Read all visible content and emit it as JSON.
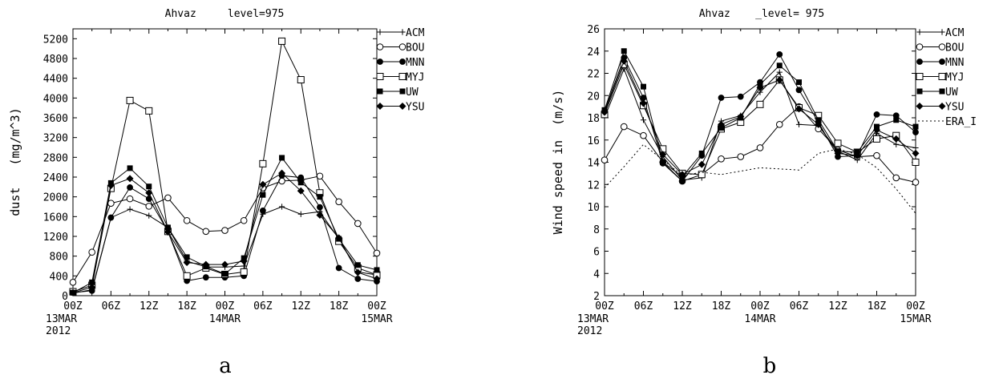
{
  "panels": [
    {
      "label": "a",
      "title": "Ahvaz     level=975"
    },
    {
      "label": "b",
      "title": "Ahvaz    _level= 975"
    }
  ],
  "chart_data": [
    {
      "type": "line",
      "title": "Ahvaz     level=975",
      "xlabel": "",
      "ylabel": "dust   (mg/m^3)",
      "ylim": [
        0,
        5400
      ],
      "yticks": [
        0,
        400,
        800,
        1200,
        1600,
        2000,
        2400,
        2800,
        3200,
        3600,
        4000,
        4400,
        4800,
        5200
      ],
      "x_hours": [
        0,
        3,
        6,
        9,
        12,
        15,
        18,
        21,
        24,
        27,
        30,
        33,
        36,
        39,
        42,
        45,
        48
      ],
      "x_tick_hours": [
        0,
        6,
        12,
        18,
        24,
        30,
        36,
        42,
        48
      ],
      "x_tick_labels": [
        "00Z",
        "06Z",
        "12Z",
        "18Z",
        "00Z",
        "06Z",
        "12Z",
        "18Z",
        "00Z"
      ],
      "x_date_labels": [
        {
          "hour": 0,
          "lines": [
            "13MAR",
            "2012"
          ]
        },
        {
          "hour": 24,
          "lines": [
            "14MAR"
          ]
        },
        {
          "hour": 48,
          "lines": [
            "15MAR"
          ]
        }
      ],
      "legend_position": "right",
      "series": [
        {
          "name": "ACM",
          "marker": "plus",
          "values": [
            50,
            120,
            1580,
            1750,
            1620,
            1380,
            700,
            580,
            580,
            600,
            1650,
            1800,
            1650,
            1700,
            1150,
            480,
            420
          ]
        },
        {
          "name": "BOU",
          "marker": "open-circle",
          "values": [
            270,
            880,
            1870,
            1960,
            1810,
            1980,
            1520,
            1300,
            1320,
            1520,
            2180,
            2320,
            2340,
            2420,
            1900,
            1460,
            860
          ]
        },
        {
          "name": "MNN",
          "marker": "filled-circle",
          "values": [
            60,
            100,
            1580,
            2190,
            1960,
            1300,
            300,
            370,
            370,
            400,
            1720,
            2430,
            2390,
            1790,
            560,
            340,
            290
          ]
        },
        {
          "name": "MYJ",
          "marker": "open-square",
          "values": [
            80,
            210,
            2170,
            3950,
            3740,
            1300,
            400,
            560,
            430,
            480,
            2670,
            5150,
            4370,
            2080,
            1100,
            560,
            420
          ]
        },
        {
          "name": "UW",
          "marker": "filled-square",
          "values": [
            60,
            270,
            2280,
            2580,
            2210,
            1380,
            780,
            590,
            440,
            760,
            2040,
            2790,
            2290,
            2000,
            1150,
            620,
            520
          ]
        },
        {
          "name": "YSU",
          "marker": "filled-diamond",
          "values": [
            60,
            170,
            2230,
            2370,
            2080,
            1290,
            670,
            630,
            630,
            700,
            2250,
            2480,
            2120,
            1630,
            1170,
            470,
            340
          ]
        }
      ]
    },
    {
      "type": "line",
      "title": "Ahvaz    _level= 975",
      "xlabel": "",
      "ylabel": "Wind speed in  (m/s)",
      "ylim": [
        2,
        26
      ],
      "yticks": [
        2,
        4,
        6,
        8,
        10,
        12,
        14,
        16,
        18,
        20,
        22,
        24,
        26
      ],
      "x_hours": [
        0,
        3,
        6,
        9,
        12,
        15,
        18,
        21,
        24,
        27,
        30,
        33,
        36,
        39,
        42,
        45,
        48
      ],
      "x_tick_hours": [
        0,
        6,
        12,
        18,
        24,
        30,
        36,
        42,
        48
      ],
      "x_tick_labels": [
        "00Z",
        "06Z",
        "12Z",
        "18Z",
        "00Z",
        "06Z",
        "12Z",
        "18Z",
        "00Z"
      ],
      "x_date_labels": [
        {
          "hour": 0,
          "lines": [
            "13MAR",
            "2012"
          ]
        },
        {
          "hour": 24,
          "lines": [
            "14MAR"
          ]
        },
        {
          "hour": 48,
          "lines": [
            "15MAR"
          ]
        }
      ],
      "legend_position": "right",
      "series": [
        {
          "name": "ACM",
          "marker": "plus",
          "values": [
            18.0,
            22.4,
            17.8,
            14.5,
            12.4,
            12.6,
            17.7,
            18.2,
            20.3,
            22.1,
            17.4,
            17.3,
            15.0,
            14.2,
            16.6,
            15.6,
            15.3
          ]
        },
        {
          "name": "BOU",
          "marker": "open-circle",
          "values": [
            14.2,
            17.2,
            16.4,
            14.0,
            12.3,
            12.9,
            14.3,
            14.5,
            15.3,
            17.4,
            19.0,
            17.0,
            15.1,
            14.5,
            14.6,
            12.6,
            12.2
          ]
        },
        {
          "name": "MNN",
          "marker": "filled-circle",
          "values": [
            18.6,
            23.4,
            19.8,
            13.9,
            12.3,
            14.6,
            19.8,
            19.9,
            21.2,
            23.7,
            20.5,
            17.6,
            14.5,
            14.6,
            18.3,
            18.2,
            16.7
          ]
        },
        {
          "name": "MYJ",
          "marker": "open-square",
          "values": [
            18.3,
            22.8,
            19.1,
            15.2,
            13.0,
            12.9,
            17.0,
            17.6,
            19.2,
            21.4,
            18.9,
            18.2,
            15.7,
            14.9,
            16.1,
            16.4,
            14.0
          ]
        },
        {
          "name": "UW",
          "marker": "filled-square",
          "values": [
            18.7,
            24.0,
            20.8,
            14.0,
            12.7,
            14.8,
            17.1,
            18.0,
            21.0,
            22.7,
            21.2,
            17.8,
            15.0,
            14.9,
            17.2,
            17.8,
            17.2
          ]
        },
        {
          "name": "YSU",
          "marker": "filled-diamond",
          "values": [
            18.5,
            23.1,
            19.3,
            14.7,
            12.9,
            13.8,
            17.4,
            18.1,
            20.7,
            21.4,
            18.8,
            17.4,
            14.8,
            14.6,
            16.9,
            16.1,
            14.8
          ]
        },
        {
          "name": "ERA_I",
          "marker": "none",
          "dashed": true,
          "values": [
            11.7,
            13.6,
            15.6,
            14.2,
            12.8,
            13.1,
            12.9,
            13.2,
            13.5,
            13.4,
            13.3,
            14.8,
            15.2,
            14.7,
            13.5,
            11.6,
            9.4
          ]
        }
      ]
    }
  ]
}
